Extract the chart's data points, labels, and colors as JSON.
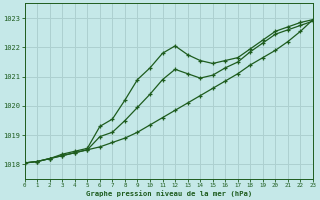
{
  "title": "Graphe pression niveau de la mer (hPa)",
  "bg_color": "#c5e8e8",
  "grid_color": "#add0d0",
  "line_color": "#1e5c1e",
  "xlim": [
    0,
    23
  ],
  "ylim": [
    1017.5,
    1023.5
  ],
  "yticks": [
    1018,
    1019,
    1020,
    1021,
    1022,
    1023
  ],
  "xticks": [
    0,
    1,
    2,
    3,
    4,
    5,
    6,
    7,
    8,
    9,
    10,
    11,
    12,
    13,
    14,
    15,
    16,
    17,
    18,
    19,
    20,
    21,
    22,
    23
  ],
  "line_trend_x": [
    0,
    1,
    2,
    3,
    4,
    5,
    6,
    7,
    8,
    9,
    10,
    11,
    12,
    13,
    14,
    15,
    16,
    17,
    18,
    19,
    20,
    21,
    22,
    23
  ],
  "line_trend_y": [
    1018.05,
    1018.1,
    1018.2,
    1018.3,
    1018.4,
    1018.5,
    1018.6,
    1018.75,
    1018.9,
    1019.1,
    1019.35,
    1019.6,
    1019.85,
    1020.1,
    1020.35,
    1020.6,
    1020.85,
    1021.1,
    1021.4,
    1021.65,
    1021.9,
    1022.2,
    1022.55,
    1022.95
  ],
  "line_upper_x": [
    0,
    1,
    2,
    3,
    4,
    5,
    6,
    7,
    8,
    9,
    10,
    11,
    12,
    13,
    14,
    15,
    16,
    17,
    18,
    19,
    20,
    21,
    22,
    23
  ],
  "line_upper_y": [
    1018.05,
    1018.1,
    1018.2,
    1018.35,
    1018.45,
    1018.55,
    1019.3,
    1019.55,
    1020.2,
    1020.9,
    1021.3,
    1021.8,
    1022.05,
    1021.75,
    1021.55,
    1021.45,
    1021.55,
    1021.65,
    1021.95,
    1022.25,
    1022.55,
    1022.7,
    1022.85,
    1022.95
  ],
  "line_lower_x": [
    0,
    1,
    2,
    3,
    4,
    5,
    6,
    7,
    8,
    9,
    10,
    11,
    12,
    13,
    14,
    15,
    16,
    17,
    18,
    19,
    20,
    21,
    22,
    23
  ],
  "line_lower_y": [
    1018.05,
    1018.1,
    1018.2,
    1018.3,
    1018.4,
    1018.5,
    1018.95,
    1019.1,
    1019.5,
    1019.95,
    1020.4,
    1020.9,
    1021.25,
    1021.1,
    1020.95,
    1021.05,
    1021.3,
    1021.5,
    1021.85,
    1022.15,
    1022.45,
    1022.6,
    1022.75,
    1022.9
  ]
}
